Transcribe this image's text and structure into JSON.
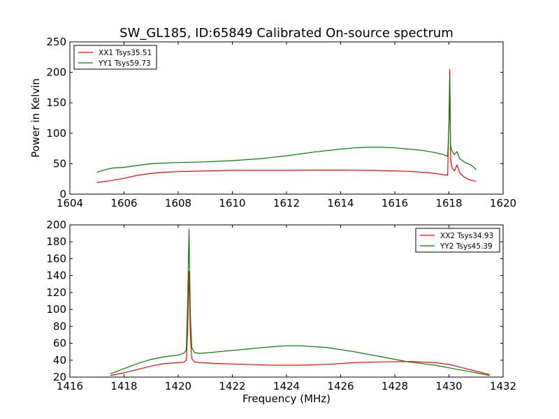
{
  "figure": {
    "title": "SW_GL185, ID:65849 Calibrated On-source spectrum"
  },
  "chart_data": [
    {
      "type": "line",
      "title": "SW_GL185, ID:65849 Calibrated On-source spectrum",
      "xlabel": "",
      "ylabel": "Power in Kelvin",
      "xlim": [
        1604,
        1620
      ],
      "ylim": [
        0,
        250
      ],
      "xticks": [
        1604,
        1606,
        1608,
        1610,
        1612,
        1614,
        1616,
        1618,
        1620
      ],
      "yticks": [
        0,
        50,
        100,
        150,
        200,
        250
      ],
      "grid": false,
      "legend_position": "top-left",
      "series": [
        {
          "name": "XX1 Tsys35.51",
          "color": "#ff0000",
          "x": [
            1605.0,
            1605.5,
            1606.0,
            1606.5,
            1607.0,
            1607.5,
            1608.0,
            1609.0,
            1610.0,
            1611.0,
            1612.0,
            1613.0,
            1614.0,
            1615.0,
            1616.0,
            1616.5,
            1617.0,
            1617.5,
            1617.8,
            1617.95,
            1618.0,
            1618.03,
            1618.06,
            1618.1,
            1618.2,
            1618.3,
            1618.4,
            1618.5,
            1618.6,
            1618.7,
            1618.8,
            1618.9,
            1619.0
          ],
          "y": [
            19,
            22,
            26,
            31,
            34,
            36,
            37,
            38,
            39,
            39,
            39,
            39.5,
            39.5,
            39,
            38,
            37.5,
            36,
            34,
            32,
            31,
            120,
            205,
            60,
            45,
            38,
            48,
            35,
            30,
            27,
            25,
            23,
            22,
            21
          ]
        },
        {
          "name": "YY1 Tsys59.73",
          "color": "#008000",
          "x": [
            1605.0,
            1605.3,
            1605.6,
            1606.0,
            1606.5,
            1607.0,
            1607.5,
            1608.0,
            1609.0,
            1610.0,
            1611.0,
            1612.0,
            1613.0,
            1614.0,
            1614.5,
            1615.0,
            1615.5,
            1616.0,
            1616.5,
            1617.0,
            1617.5,
            1617.8,
            1617.95,
            1618.0,
            1618.03,
            1618.06,
            1618.1,
            1618.2,
            1618.3,
            1618.4,
            1618.5,
            1618.6,
            1618.7,
            1618.8,
            1618.9,
            1619.0
          ],
          "y": [
            36,
            40,
            43,
            44,
            47,
            50,
            51,
            52,
            53,
            55,
            58,
            63,
            69,
            74,
            76,
            77,
            77,
            76,
            74,
            72,
            68,
            65,
            62,
            110,
            192,
            80,
            72,
            65,
            70,
            58,
            55,
            52,
            50,
            48,
            45,
            40
          ]
        }
      ]
    },
    {
      "type": "line",
      "title": "",
      "xlabel": "Frequency (MHz)",
      "ylabel": "",
      "xlim": [
        1416,
        1432
      ],
      "ylim": [
        20,
        200
      ],
      "xticks": [
        1416,
        1418,
        1420,
        1422,
        1424,
        1426,
        1428,
        1430,
        1432
      ],
      "yticks": [
        20,
        40,
        60,
        80,
        100,
        120,
        140,
        160,
        180,
        200
      ],
      "grid": false,
      "legend_position": "top-right",
      "series": [
        {
          "name": "XX2 Tsys34.93",
          "color": "#ff0000",
          "x": [
            1417.5,
            1418.0,
            1418.5,
            1419.0,
            1419.5,
            1420.0,
            1420.2,
            1420.3,
            1420.35,
            1420.4,
            1420.45,
            1420.5,
            1420.6,
            1420.8,
            1421.5,
            1422.5,
            1423.5,
            1424.5,
            1425.5,
            1426.5,
            1427.5,
            1428.5,
            1429.5,
            1430.0,
            1430.5,
            1431.0,
            1431.5
          ],
          "y": [
            22,
            25,
            29,
            33,
            36,
            37,
            37.5,
            40,
            75,
            145,
            70,
            42,
            38,
            37,
            36,
            35,
            34,
            34,
            35,
            37,
            38,
            38.5,
            37,
            35,
            31,
            27,
            23
          ]
        },
        {
          "name": "YY2 Tsys45.39",
          "color": "#008000",
          "x": [
            1417.5,
            1418.0,
            1418.5,
            1419.0,
            1419.5,
            1420.0,
            1420.2,
            1420.3,
            1420.35,
            1420.4,
            1420.45,
            1420.5,
            1420.6,
            1420.8,
            1421.5,
            1422.5,
            1423.5,
            1424.0,
            1424.5,
            1425.5,
            1426.5,
            1427.5,
            1428.5,
            1429.5,
            1430.0,
            1430.5,
            1431.0,
            1431.5
          ],
          "y": [
            24,
            30,
            36,
            41,
            44,
            46,
            48,
            52,
            110,
            195,
            95,
            55,
            49,
            48,
            50,
            53,
            56,
            57,
            57,
            55,
            50,
            44,
            38,
            34,
            31,
            28,
            25,
            22
          ]
        }
      ]
    }
  ]
}
